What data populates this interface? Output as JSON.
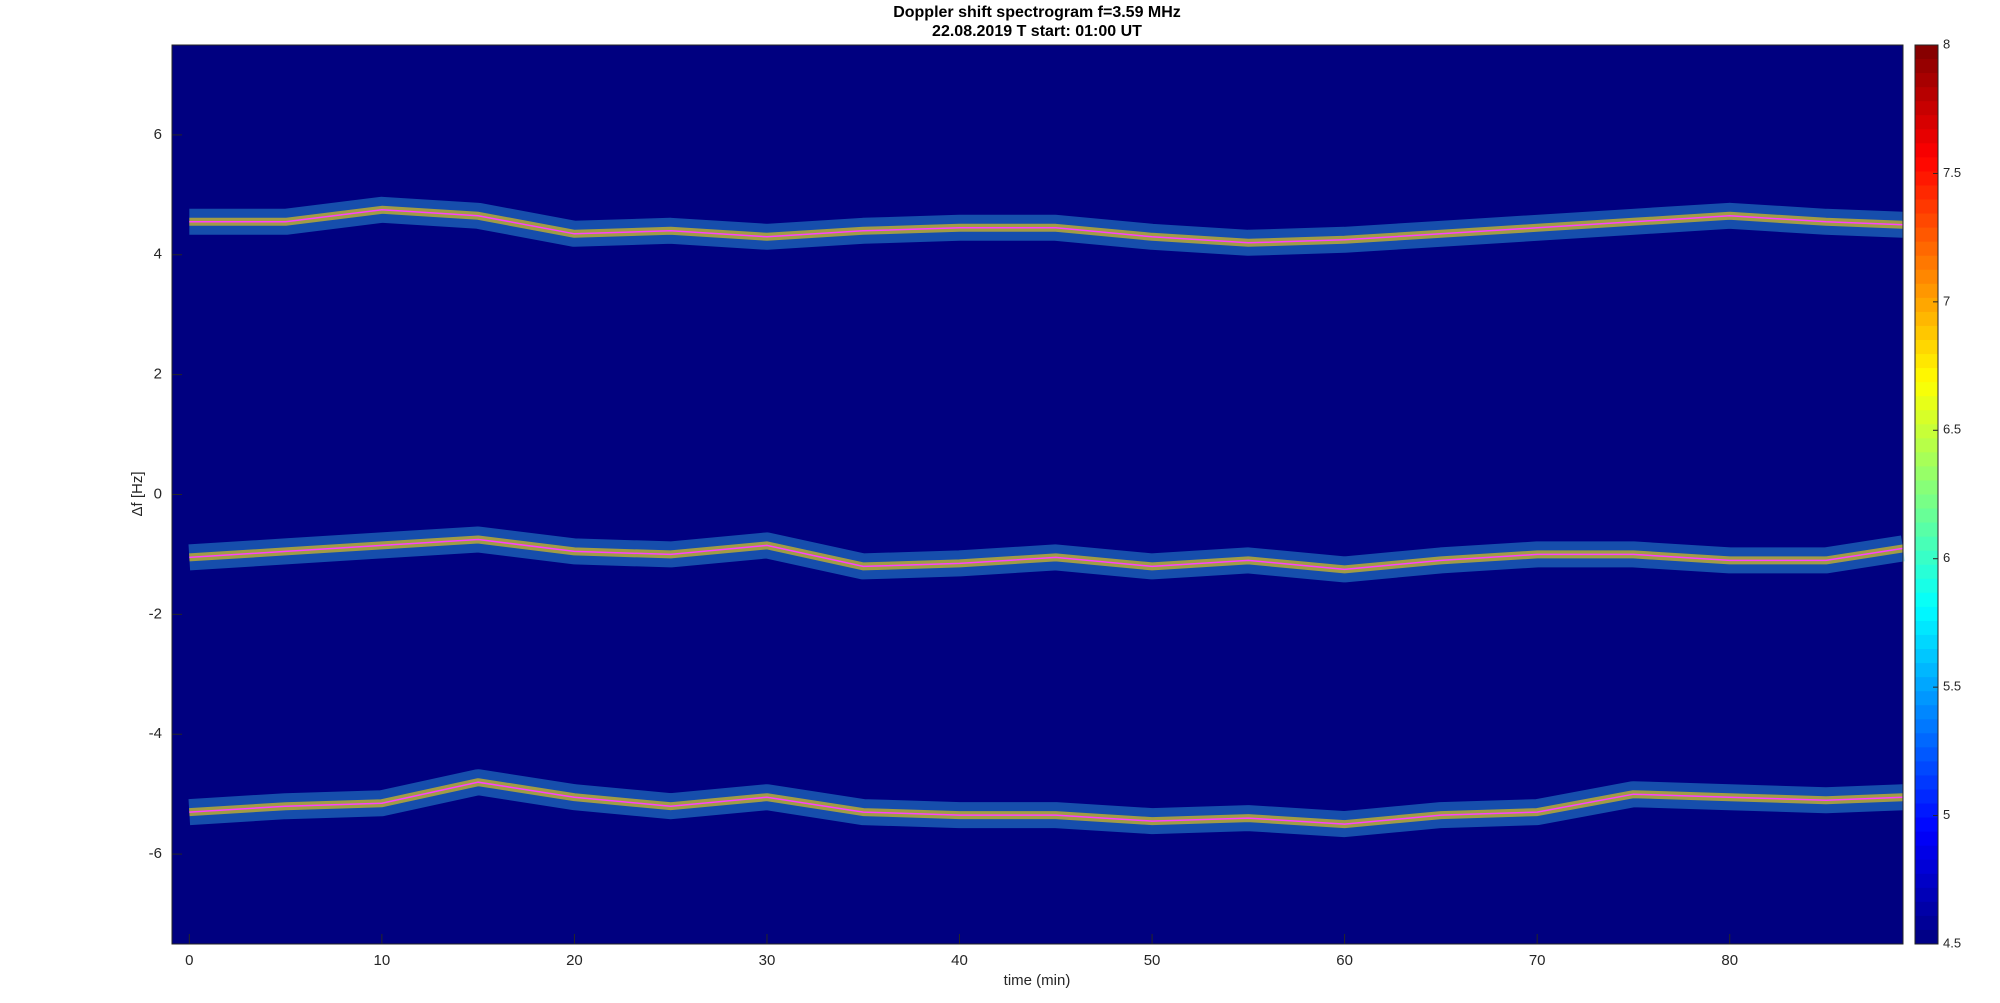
{
  "chart_data": {
    "type": "spectrogram",
    "title": "Doppler shift spectrogram f=3.59 MHz",
    "subtitle": "22.08.2019    T start: 01:00 UT",
    "xlabel": "time (min)",
    "ylabel": "Δf [Hz]",
    "x": [
      0,
      5,
      10,
      15,
      20,
      25,
      30,
      35,
      40,
      45,
      50,
      55,
      60,
      65,
      70,
      75,
      80,
      85,
      89
    ],
    "series": [
      {
        "color": "#ff40ff",
        "band_color": "#40e0ff",
        "values": [
          4.55,
          4.55,
          4.75,
          4.65,
          4.35,
          4.4,
          4.3,
          4.4,
          4.45,
          4.45,
          4.3,
          4.2,
          4.25,
          4.35,
          4.45,
          4.55,
          4.65,
          4.55,
          4.5
        ]
      },
      {
        "color": "#ff40ff",
        "band_color": "#40e0ff",
        "values": [
          -1.05,
          -0.95,
          -0.85,
          -0.75,
          -0.95,
          -1.0,
          -0.85,
          -1.2,
          -1.15,
          -1.05,
          -1.2,
          -1.1,
          -1.25,
          -1.1,
          -1.0,
          -1.0,
          -1.1,
          -1.1,
          -0.9
        ]
      },
      {
        "color": "#ff40ff",
        "band_color": "#40e0ff",
        "values": [
          -5.3,
          -5.2,
          -5.15,
          -4.8,
          -5.05,
          -5.2,
          -5.05,
          -5.3,
          -5.35,
          -5.35,
          -5.45,
          -5.4,
          -5.5,
          -5.35,
          -5.3,
          -5.0,
          -5.05,
          -5.1,
          -5.05
        ]
      }
    ],
    "xlim": [
      -0.9,
      89
    ],
    "xticks": [
      0,
      10,
      20,
      30,
      40,
      50,
      60,
      70,
      80
    ],
    "ylim": [
      -7.5,
      7.5
    ],
    "yticks": [
      -6,
      -4,
      -2,
      0,
      2,
      4,
      6
    ],
    "colormap": "jet",
    "clim": [
      4.5,
      8
    ],
    "cticks": [
      4.5,
      5,
      5.5,
      6,
      6.5,
      7,
      7.5,
      8
    ]
  }
}
